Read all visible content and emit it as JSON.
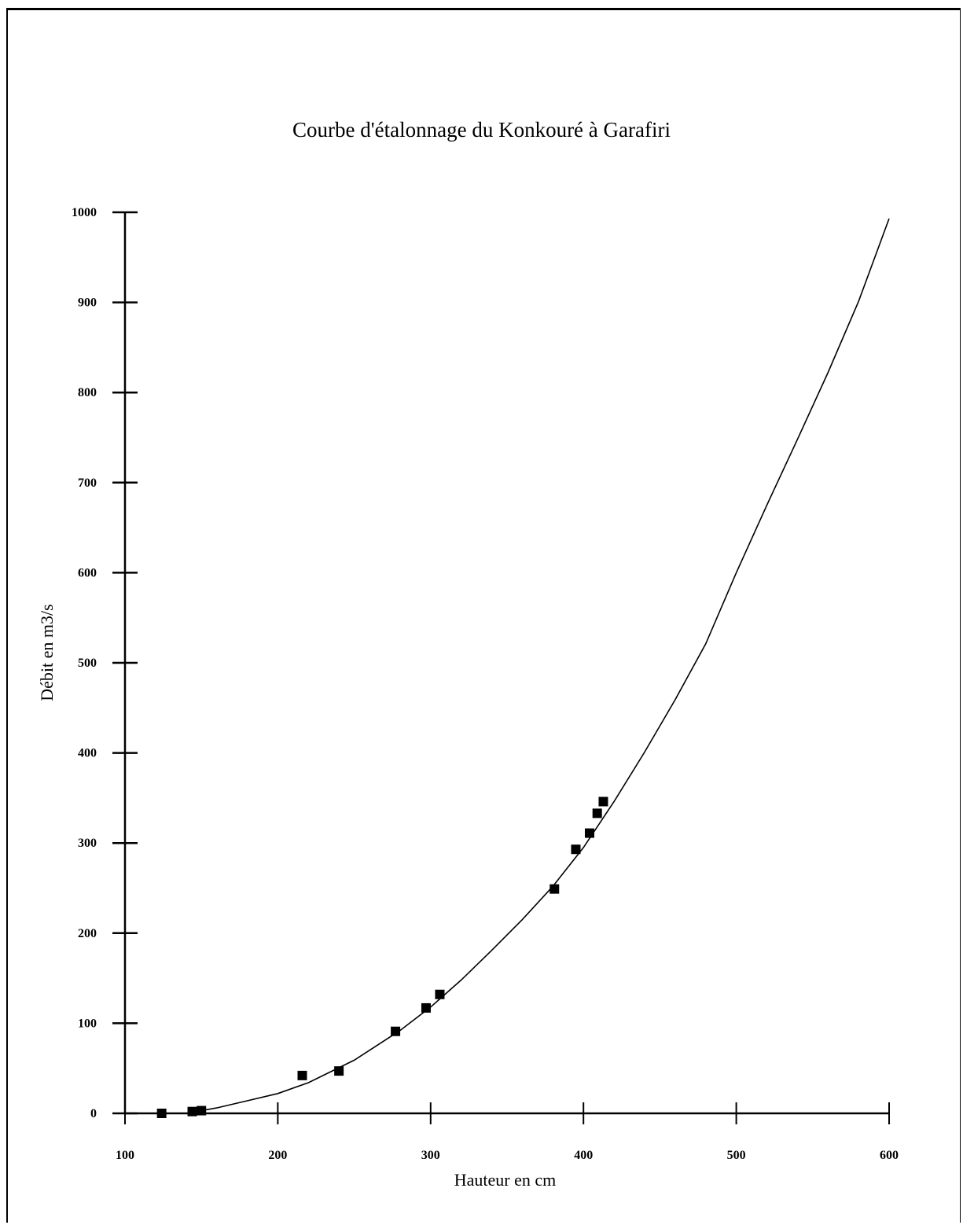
{
  "chart_data": {
    "type": "scatter",
    "title": "Courbe d'étalonnage du Konkouré à Garafiri",
    "xlabel": "Hauteur en cm",
    "ylabel": "Débit en m3/s",
    "xlim": [
      100,
      600
    ],
    "ylim": [
      0,
      1000
    ],
    "x_ticks": [
      100,
      200,
      300,
      400,
      500,
      600
    ],
    "y_ticks": [
      0,
      100,
      200,
      300,
      400,
      500,
      600,
      700,
      800,
      900,
      1000
    ],
    "grid": false,
    "legend": "none",
    "marker_color": "#000000",
    "points": [
      {
        "x": 124,
        "y": 0
      },
      {
        "x": 144,
        "y": 2
      },
      {
        "x": 150,
        "y": 3
      },
      {
        "x": 216,
        "y": 42
      },
      {
        "x": 240,
        "y": 47
      },
      {
        "x": 277,
        "y": 91
      },
      {
        "x": 297,
        "y": 117
      },
      {
        "x": 306,
        "y": 132
      },
      {
        "x": 381,
        "y": 249
      },
      {
        "x": 395,
        "y": 293
      },
      {
        "x": 404,
        "y": 311
      },
      {
        "x": 409,
        "y": 333
      },
      {
        "x": 413,
        "y": 346
      }
    ],
    "fit_curve": [
      {
        "x": 124,
        "y": 0
      },
      {
        "x": 140,
        "y": 0
      },
      {
        "x": 160,
        "y": 6
      },
      {
        "x": 180,
        "y": 14
      },
      {
        "x": 200,
        "y": 22
      },
      {
        "x": 220,
        "y": 34
      },
      {
        "x": 250,
        "y": 59
      },
      {
        "x": 280,
        "y": 92
      },
      {
        "x": 300,
        "y": 118
      },
      {
        "x": 320,
        "y": 148
      },
      {
        "x": 340,
        "y": 181
      },
      {
        "x": 360,
        "y": 215
      },
      {
        "x": 380,
        "y": 252
      },
      {
        "x": 400,
        "y": 295
      },
      {
        "x": 420,
        "y": 346
      },
      {
        "x": 440,
        "y": 401
      },
      {
        "x": 460,
        "y": 459
      },
      {
        "x": 480,
        "y": 521
      },
      {
        "x": 500,
        "y": 600
      },
      {
        "x": 520,
        "y": 675
      },
      {
        "x": 540,
        "y": 748
      },
      {
        "x": 560,
        "y": 822
      },
      {
        "x": 580,
        "y": 901
      },
      {
        "x": 600,
        "y": 993
      }
    ]
  }
}
